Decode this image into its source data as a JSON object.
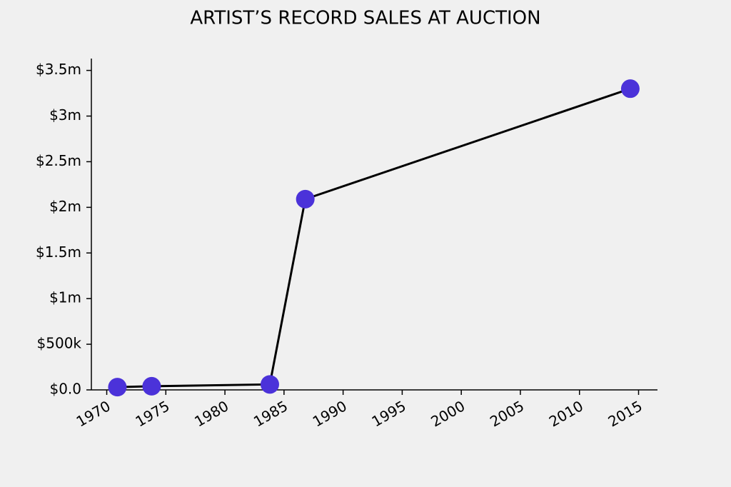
{
  "chart_data": {
    "type": "line",
    "title": "ARTIST’S RECORD SALES AT AUCTION",
    "x": [
      1970.9,
      1973.8,
      1983.8,
      1986.8,
      2014.3
    ],
    "values": [
      30000,
      40000,
      60000,
      2090000,
      3300000
    ],
    "color": "#4b32d9",
    "line_color": "#000000",
    "xlim": [
      1968.7,
      2016.6
    ],
    "xticks": [
      1970,
      1975,
      1980,
      1985,
      1990,
      1995,
      2000,
      2005,
      2010,
      2015
    ],
    "ylim": [
      0,
      3630000
    ],
    "yticks": [
      {
        "value": 0,
        "label": "$0.0"
      },
      {
        "value": 500000,
        "label": "$500k"
      },
      {
        "value": 1000000,
        "label": "$1m"
      },
      {
        "value": 1500000,
        "label": "$1.5m"
      },
      {
        "value": 2000000,
        "label": "$2m"
      },
      {
        "value": 2500000,
        "label": "$2.5m"
      },
      {
        "value": 3000000,
        "label": "$3m"
      },
      {
        "value": 3500000,
        "label": "$3.5m"
      }
    ],
    "grid": false
  }
}
